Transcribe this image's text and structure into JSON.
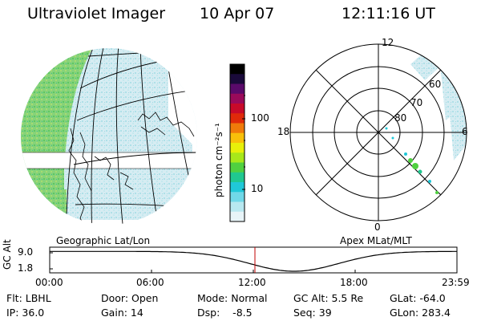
{
  "header": {
    "title": "Ultraviolet Imager",
    "date": "10 Apr 07",
    "time": "12:11:16 UT"
  },
  "colorbar": {
    "unit_label": "photon cm⁻²s⁻¹",
    "ticks": [
      "100",
      "10"
    ],
    "colors": [
      "#000000",
      "#1a0a3a",
      "#5a0a6a",
      "#9a0a5a",
      "#c80a2a",
      "#e02a0a",
      "#f07a0a",
      "#f8c00a",
      "#e8f00a",
      "#a8e81a",
      "#50d040",
      "#20c890",
      "#20c8d8",
      "#70d8e8",
      "#b8e8f0",
      "#e8f4f8"
    ]
  },
  "geo_panel": {
    "label": "Geographic Lat/Lon"
  },
  "polar_panel": {
    "label": "Apex  MLat/MLT",
    "mlt_labels": {
      "top": "12",
      "left": "18",
      "right": "6",
      "bottom": "0"
    },
    "lat_labels": [
      "60",
      "70",
      "80"
    ]
  },
  "timeline": {
    "ylabel": "GC Alt",
    "yticks": [
      "9.0",
      "1.8"
    ],
    "xticks": [
      "00:00",
      "06:00",
      "12:00",
      "18:00",
      "23:59"
    ],
    "current_color": "#c00000"
  },
  "info": {
    "flt": "Flt: LBHL",
    "ip": "IP: 36.0",
    "door": "Door: Open",
    "gain": "Gain: 14",
    "mode": "Mode: Normal",
    "dsp": "Dsp:    -8.5",
    "gc_alt": "GC Alt: 5.5 Re",
    "seq": "Seq: 39",
    "glat": "GLat: -64.0",
    "glon": "GLon: 283.4"
  }
}
